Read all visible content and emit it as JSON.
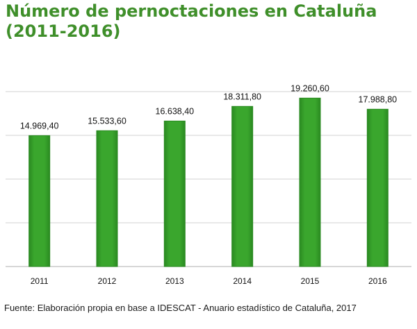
{
  "title_line1": "Número de pernoctaciones en Cataluña",
  "title_line2": "(2011-2016)",
  "source": "Fuente: Elaboración propia en base a IDESCAT - Anuario estadístico de Cataluña, 2017",
  "colors": {
    "title": "#3f8f2a",
    "bar": "#3aa62d",
    "bar_dark": "#2a8a21",
    "grid": "#d9d9d9"
  },
  "chart_data": {
    "type": "bar",
    "categories": [
      "2011",
      "2012",
      "2013",
      "2014",
      "2015",
      "2016"
    ],
    "values": [
      14969.4,
      15533.6,
      16638.4,
      18311.8,
      19260.6,
      17988.8
    ],
    "value_labels": [
      "14.969,40",
      "15.533,60",
      "16.638,40",
      "18.311,80",
      "19.260,60",
      "17.988,80"
    ],
    "ylim": [
      0,
      20000
    ],
    "grid": true,
    "legend": "none"
  }
}
